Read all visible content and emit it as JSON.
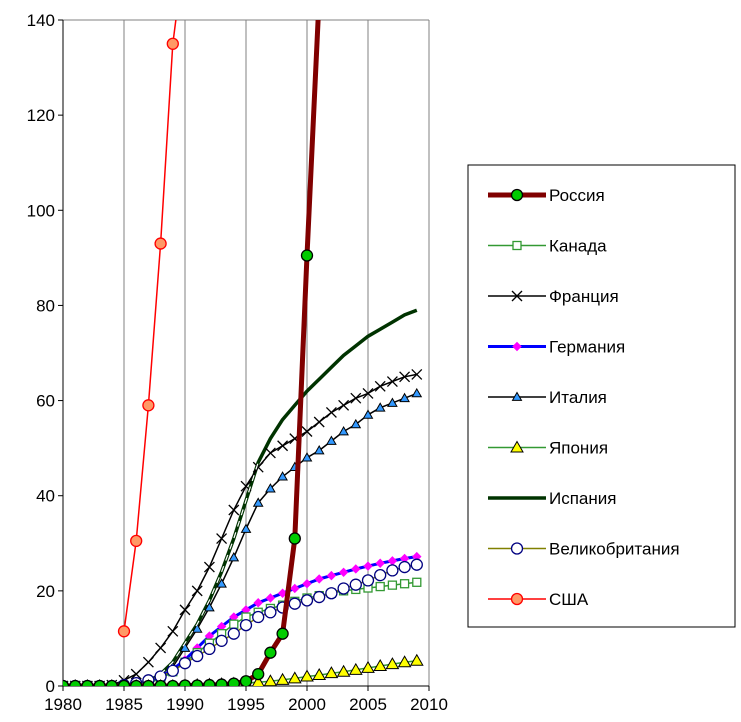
{
  "chart_data": {
    "type": "line",
    "title": "",
    "xlabel": "",
    "ylabel": "",
    "xlim": [
      1980,
      2010
    ],
    "ylim": [
      0,
      140
    ],
    "xticks": [
      "1980",
      "1985",
      "1990",
      "1995",
      "2000",
      "2005",
      "2010"
    ],
    "yticks": [
      "0",
      "20",
      "40",
      "60",
      "80",
      "100",
      "120",
      "140"
    ],
    "grid": "vertical",
    "legend_position": "right",
    "series": [
      {
        "name": "Россия",
        "color": "#800000",
        "marker": "circle",
        "marker_fill": "#00cc00",
        "line_width": 5,
        "x": [
          1980,
          1981,
          1982,
          1983,
          1984,
          1985,
          1986,
          1987,
          1988,
          1989,
          1990,
          1991,
          1992,
          1993,
          1994,
          1995,
          1996,
          1997,
          1998,
          1999,
          2000,
          2001
        ],
        "y": [
          0,
          0,
          0,
          0,
          0,
          0,
          0,
          0,
          0,
          0,
          0.1,
          0.1,
          0.2,
          0.3,
          0.5,
          1.0,
          2.5,
          7.0,
          11.0,
          31.0,
          90.5,
          145
        ]
      },
      {
        "name": "Канада",
        "color": "#339933",
        "marker": "square",
        "marker_fill": "#ffffff",
        "line_width": 1.5,
        "x": [
          1980,
          1981,
          1982,
          1983,
          1984,
          1985,
          1986,
          1987,
          1988,
          1989,
          1990,
          1991,
          1992,
          1993,
          1994,
          1995,
          1996,
          1997,
          1998,
          1999,
          2000,
          2001,
          2002,
          2003,
          2004,
          2005,
          2006,
          2007,
          2008,
          2009
        ],
        "y": [
          0,
          0,
          0,
          0,
          0,
          0.1,
          0.3,
          0.7,
          1.5,
          3,
          5,
          7,
          9,
          11,
          13,
          14.5,
          15.5,
          16.3,
          17,
          17.8,
          18.5,
          19,
          19.5,
          20,
          20.3,
          20.6,
          20.9,
          21.2,
          21.5,
          21.8
        ]
      },
      {
        "name": "Франция",
        "color": "#000000",
        "marker": "x",
        "marker_fill": "none",
        "line_width": 1.5,
        "x": [
          1980,
          1981,
          1982,
          1983,
          1984,
          1985,
          1986,
          1987,
          1988,
          1989,
          1990,
          1991,
          1992,
          1993,
          1994,
          1995,
          1996,
          1997,
          1998,
          1999,
          2000,
          2001,
          2002,
          2003,
          2004,
          2005,
          2006,
          2007,
          2008,
          2009
        ],
        "y": [
          0,
          0,
          0,
          0,
          0.2,
          1.2,
          2.5,
          5,
          8,
          11.5,
          16,
          20,
          25,
          31,
          37,
          42,
          46,
          49,
          50.5,
          52,
          53.5,
          55.5,
          57.5,
          59,
          60.5,
          61.5,
          63,
          64,
          65,
          65.5
        ]
      },
      {
        "name": "Германия",
        "color": "#0000ff",
        "marker": "diamond",
        "marker_fill": "#ff00ff",
        "line_width": 3,
        "x": [
          1980,
          1981,
          1982,
          1983,
          1984,
          1985,
          1986,
          1987,
          1988,
          1989,
          1990,
          1991,
          1992,
          1993,
          1994,
          1995,
          1996,
          1997,
          1998,
          1999,
          2000,
          2001,
          2002,
          2003,
          2004,
          2005,
          2006,
          2007,
          2008,
          2009
        ],
        "y": [
          0,
          0,
          0,
          0,
          0,
          0.1,
          0.4,
          1,
          2,
          3.5,
          5.5,
          8,
          10.5,
          12.5,
          14.5,
          16,
          17.5,
          18.5,
          19.5,
          20.5,
          21.5,
          22.5,
          23.2,
          23.9,
          24.6,
          25.2,
          25.8,
          26.3,
          26.8,
          27.2
        ]
      },
      {
        "name": "Италия",
        "color": "#000000",
        "marker": "triangle",
        "marker_fill": "#3399ff",
        "line_width": 1.5,
        "x": [
          1980,
          1981,
          1982,
          1983,
          1984,
          1985,
          1986,
          1987,
          1988,
          1989,
          1990,
          1991,
          1992,
          1993,
          1994,
          1995,
          1996,
          1997,
          1998,
          1999,
          2000,
          2001,
          2002,
          2003,
          2004,
          2005,
          2006,
          2007,
          2008,
          2009
        ],
        "y": [
          0,
          0,
          0,
          0,
          0,
          0.1,
          0.3,
          0.8,
          1.8,
          4,
          8,
          12,
          16.5,
          21.5,
          27,
          33,
          38.5,
          41.5,
          44,
          46,
          48,
          49.5,
          51.5,
          53.5,
          55,
          57,
          58.5,
          59.5,
          60.5,
          61.5
        ]
      },
      {
        "name": "Япония",
        "color": "#339933",
        "marker": "triangle",
        "marker_fill": "#ffff00",
        "line_width": 1.5,
        "x": [
          1980,
          1981,
          1982,
          1983,
          1984,
          1985,
          1986,
          1987,
          1988,
          1989,
          1990,
          1991,
          1992,
          1993,
          1994,
          1995,
          1996,
          1997,
          1998,
          1999,
          2000,
          2001,
          2002,
          2003,
          2004,
          2005,
          2006,
          2007,
          2008,
          2009
        ],
        "y": [
          0,
          0,
          0,
          0,
          0,
          0,
          0,
          0,
          0,
          0,
          0.1,
          0.2,
          0.3,
          0.4,
          0.5,
          0.6,
          0.8,
          1.0,
          1.3,
          1.6,
          2.0,
          2.3,
          2.7,
          3.0,
          3.4,
          3.8,
          4.2,
          4.6,
          5.0,
          5.3
        ]
      },
      {
        "name": "Испания",
        "color": "#003300",
        "marker": "none",
        "marker_fill": "none",
        "line_width": 3.5,
        "x": [
          1980,
          1981,
          1982,
          1983,
          1984,
          1985,
          1986,
          1987,
          1988,
          1989,
          1990,
          1991,
          1992,
          1993,
          1994,
          1995,
          1996,
          1997,
          1998,
          1999,
          2000,
          2001,
          2002,
          2003,
          2004,
          2005,
          2006,
          2007,
          2008,
          2009
        ],
        "y": [
          0,
          0,
          0,
          0,
          0,
          0.1,
          0.4,
          1,
          2.5,
          5,
          9,
          13,
          18,
          24,
          31,
          39,
          47,
          52,
          56,
          59,
          62,
          64.5,
          67,
          69.5,
          71.5,
          73.5,
          75,
          76.5,
          78,
          79
        ]
      },
      {
        "name": "Великобритания",
        "color": "#808000",
        "marker": "circle",
        "marker_fill": "#ffffff",
        "line_width": 1.5,
        "x": [
          1980,
          1981,
          1982,
          1983,
          1984,
          1985,
          1986,
          1987,
          1988,
          1989,
          1990,
          1991,
          1992,
          1993,
          1994,
          1995,
          1996,
          1997,
          1998,
          1999,
          2000,
          2001,
          2002,
          2003,
          2004,
          2005,
          2006,
          2007,
          2008,
          2009
        ],
        "y": [
          0,
          0,
          0,
          0,
          0,
          0.2,
          0.6,
          1.2,
          2,
          3.2,
          4.8,
          6.3,
          7.8,
          9.5,
          11,
          12.8,
          14.5,
          15.5,
          16.5,
          17.3,
          18,
          18.7,
          19.5,
          20.5,
          21.3,
          22.2,
          23.3,
          24.3,
          25,
          25.5
        ]
      },
      {
        "name": "США",
        "color": "#ff0000",
        "marker": "circle",
        "marker_fill": "#ff9966",
        "line_width": 1.5,
        "x": [
          1985,
          1986,
          1987,
          1988,
          1989,
          1989.5
        ],
        "y": [
          11.5,
          30.5,
          59,
          93,
          135,
          145
        ]
      }
    ]
  }
}
